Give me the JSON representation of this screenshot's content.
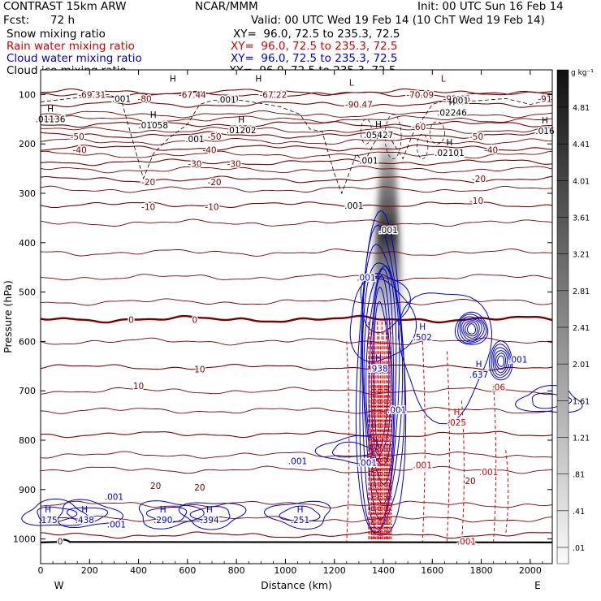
{
  "header": {
    "model": "CONTRAST 15km ARW",
    "org": "NCAR/MMM",
    "init": "Init: 00 UTC Sun 16 Feb 14",
    "fcst_label": "Fcst:",
    "fcst_value": "72 h",
    "valid": "Valid: 00 UTC Wed 19 Feb 14 (10 ChT Wed 19 Feb 14)",
    "fields": [
      {
        "name": "Snow mixing ratio",
        "xy": "XY=  96.0, 72.5 to 235.3, 72.5",
        "color": "#000000"
      },
      {
        "name": "Rain water mixing ratio",
        "xy": "XY=  96.0, 72.5 to 235.3, 72.5",
        "color": "#d40000"
      },
      {
        "name": "Cloud water mixing ratio",
        "xy": "XY=  96.0, 72.5 to 235.3, 72.5",
        "color": "#0000cc"
      },
      {
        "name": "Cloud ice mixing ratio",
        "xy": "XY=  96.0, 72.5 to 235.3, 72.5",
        "color": "#000000"
      }
    ]
  },
  "colorbar": {
    "unit": "g kg⁻¹",
    "labels": [
      "4.81",
      "4.41",
      "4.01",
      "3.61",
      "3.21",
      "2.81",
      "2.41",
      "2.01",
      "1.61",
      "1.21",
      ".81",
      ".41",
      ".01"
    ]
  },
  "chart_data": {
    "type": "cross-section contour",
    "title": "Snow, rain water, cloud water and cloud ice mixing ratio; temperature contours",
    "xlabel": "Distance (km)",
    "ylabel": "Pressure (hPa)",
    "xlim": [
      0,
      2090
    ],
    "ylim": [
      1050,
      50
    ],
    "x_ticks": [
      0,
      200,
      400,
      600,
      800,
      1000,
      1200,
      1400,
      1600,
      1800,
      2000
    ],
    "x_tick_labels": [
      "0",
      "200",
      "400",
      "600",
      "800",
      "1000",
      "1200",
      "1400",
      "1600",
      "1800",
      "2000"
    ],
    "y_ticks": [
      100,
      200,
      300,
      400,
      500,
      600,
      700,
      800,
      900,
      1000
    ],
    "y_tick_labels": [
      "100",
      "200",
      "300",
      "400",
      "500",
      "600",
      "700",
      "800",
      "900",
      "1000"
    ],
    "west_label": "W",
    "east_label": "E",
    "temperature_contours": {
      "color": "#7a0000",
      "levels_c": [
        -90,
        -80,
        -70,
        -60,
        -50,
        -40,
        -30,
        -20,
        -10,
        0,
        10,
        20,
        30
      ],
      "level_pressure_hpa": [
        120,
        100,
        95,
        160,
        182,
        208,
        237,
        272,
        323,
        555,
        652,
        788,
        992
      ],
      "labels": [
        {
          "text": "-69.31",
          "x": 210,
          "p": 100
        },
        {
          "text": "-80",
          "x": 425,
          "p": 108
        },
        {
          "text": "-67.44",
          "x": 620,
          "p": 100
        },
        {
          "text": "-80",
          "x": 780,
          "p": 108
        },
        {
          "text": "-67.22",
          "x": 950,
          "p": 100
        },
        {
          "text": "-70.09",
          "x": 1550,
          "p": 100
        },
        {
          "text": "-90.47",
          "x": 1300,
          "p": 120
        },
        {
          "text": "-92.05",
          "x": 1700,
          "p": 108
        },
        {
          "text": "-91",
          "x": 2060,
          "p": 108
        },
        {
          "text": "-60",
          "x": 1545,
          "p": 165
        },
        {
          "text": "-50",
          "x": 150,
          "p": 185
        },
        {
          "text": "-50",
          "x": 710,
          "p": 185
        },
        {
          "text": "-50",
          "x": 1780,
          "p": 185
        },
        {
          "text": "-40",
          "x": 160,
          "p": 212
        },
        {
          "text": "-40",
          "x": 690,
          "p": 212
        },
        {
          "text": "-40",
          "x": 1840,
          "p": 212
        },
        {
          "text": "-30",
          "x": 630,
          "p": 240
        },
        {
          "text": "-30",
          "x": 790,
          "p": 240
        },
        {
          "text": "-20",
          "x": 440,
          "p": 277
        },
        {
          "text": "-20",
          "x": 710,
          "p": 277
        },
        {
          "text": "-20",
          "x": 1790,
          "p": 270
        },
        {
          "text": "-10",
          "x": 440,
          "p": 327
        },
        {
          "text": "-10",
          "x": 700,
          "p": 327
        },
        {
          "text": "-10",
          "x": 1780,
          "p": 315
        },
        {
          "text": "0",
          "x": 370,
          "p": 556
        },
        {
          "text": "0",
          "x": 630,
          "p": 556
        },
        {
          "text": "10",
          "x": 650,
          "p": 656
        },
        {
          "text": "10",
          "x": 400,
          "p": 690
        },
        {
          "text": "20",
          "x": 470,
          "p": 892
        },
        {
          "text": "20",
          "x": 650,
          "p": 895
        },
        {
          "text": "20",
          "x": 1755,
          "p": 882
        },
        {
          "text": "0",
          "x": 80,
          "p": 1005
        }
      ]
    },
    "snow_mixing_ratio": {
      "color": "#888888",
      "max_location": {
        "x": 1410,
        "p": 400
      },
      "extent_hpa": [
        180,
        560
      ]
    },
    "cloud_ice_contour_labels": [
      {
        "text": ".001",
        "x": 330,
        "p": 108
      },
      {
        "text": ".001",
        "x": 760,
        "p": 110
      },
      {
        "text": ".001",
        "x": 1710,
        "p": 112
      },
      {
        "text": ".001",
        "x": 630,
        "p": 190
      },
      {
        "text": ".001",
        "x": 1340,
        "p": 233
      },
      {
        "text": ".001",
        "x": 1280,
        "p": 325
      },
      {
        "text": ".001",
        "x": 1420,
        "p": 374
      }
    ],
    "cloud_ice_maxima": [
      {
        "label": "H",
        "value": ".01136",
        "x": 40,
        "p": 138
      },
      {
        "label": "H",
        "value": ".01058",
        "x": 460,
        "p": 150
      },
      {
        "label": "H",
        "value": ".01202",
        "x": 820,
        "p": 160
      },
      {
        "label": "H",
        "value": ".05427",
        "x": 1380,
        "p": 170
      },
      {
        "label": "H",
        "value": ".02101",
        "x": 1670,
        "p": 206
      },
      {
        "label": "H",
        "value": ".02246",
        "x": 1680,
        "p": 125
      },
      {
        "label": "H",
        "value": ".016",
        "x": 2060,
        "p": 162
      },
      {
        "label": "L",
        "value": "",
        "x": 1270,
        "p": 85
      },
      {
        "label": "L",
        "value": "",
        "x": 1645,
        "p": 77
      },
      {
        "label": "H",
        "value": "",
        "x": 540,
        "p": 77
      },
      {
        "label": "H",
        "value": "",
        "x": 890,
        "p": 77
      }
    ],
    "cloud_water_contour_labels": [
      {
        "text": ".001",
        "x": 1330,
        "p": 470
      },
      {
        "text": ".001",
        "x": 1050,
        "p": 842
      },
      {
        "text": ".001",
        "x": 1950,
        "p": 636
      },
      {
        "text": ".001",
        "x": 1455,
        "p": 738
      },
      {
        "text": ".001",
        "x": 300,
        "p": 914
      },
      {
        "text": ".001",
        "x": 310,
        "p": 970
      },
      {
        "text": ".001",
        "x": 1335,
        "p": 845
      }
    ],
    "cloud_water_maxima": [
      {
        "label": "H",
        "value": ".938",
        "x": 1380,
        "p": 643
      },
      {
        "label": "H",
        "value": ".502",
        "x": 1560,
        "p": 580
      },
      {
        "label": "H",
        "value": ".637",
        "x": 1790,
        "p": 655
      },
      {
        "label": "H",
        "value": ".175",
        "x": 30,
        "p": 950
      },
      {
        "label": "H",
        "value": ".438",
        "x": 180,
        "p": 950
      },
      {
        "label": "H",
        "value": ".290",
        "x": 500,
        "p": 950
      },
      {
        "label": "H",
        "value": ".394",
        "x": 690,
        "p": 950
      },
      {
        "label": "H",
        "value": ".251",
        "x": 1060,
        "p": 950
      }
    ],
    "rain_water_contour_labels": [
      {
        "text": ".001",
        "x": 1560,
        "p": 850
      },
      {
        "text": ".001",
        "x": 1830,
        "p": 864
      },
      {
        "text": ".001",
        "x": 1740,
        "p": 1005
      },
      {
        "text": ".06",
        "x": 1870,
        "p": 692
      }
    ],
    "rain_water_maxima": [
      {
        "label": "H",
        "value": ".025",
        "x": 1700,
        "p": 752
      }
    ]
  }
}
